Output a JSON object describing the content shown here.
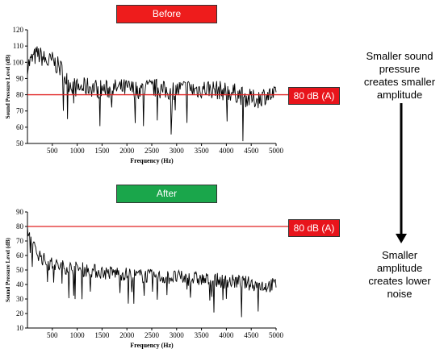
{
  "labels": {
    "before": "Before",
    "after": "After",
    "threshold": "80 dB (A)",
    "ylabel": "Sound Pressure Level (dB)",
    "xlabel": "Frequency (Hz)",
    "note_top_1": "Smaller sound",
    "note_top_2": "pressure",
    "note_top_3": "creates smaller",
    "note_top_4": "amplitude",
    "note_bottom_1": "Smaller",
    "note_bottom_2": "amplitude",
    "note_bottom_3": "creates lower",
    "note_bottom_4": "noise"
  },
  "colors": {
    "before_badge": "#ee1c1c",
    "after_badge": "#1aa64b",
    "threshold_line": "#e02020",
    "threshold_badge": "#e8141b",
    "series": "#000000"
  },
  "chart_data": [
    {
      "type": "line",
      "title": "Before",
      "xlabel": "Frequency (Hz)",
      "ylabel": "Sound Pressure Level (dB)",
      "xlim": [
        0,
        5000
      ],
      "ylim": [
        50,
        120
      ],
      "xticks": [
        500,
        1000,
        1500,
        2000,
        2500,
        3000,
        3500,
        4000,
        4500,
        5000
      ],
      "yticks": [
        50,
        60,
        70,
        80,
        90,
        100,
        110,
        120
      ],
      "threshold": 80,
      "threshold_label": "80 dB (A)",
      "series": [
        {
          "x": [
            0,
            100,
            200,
            300,
            400,
            500,
            600,
            700,
            800,
            900,
            1000,
            1200,
            1400,
            1600,
            1800,
            2000,
            2200,
            2400,
            2600,
            2800,
            3000,
            3200,
            3400,
            3600,
            3800,
            4000,
            4200,
            4400,
            4600,
            4800,
            5000
          ],
          "values": [
            98,
            102,
            105,
            103,
            100,
            101,
            98,
            95,
            88,
            86,
            84,
            85,
            84,
            83,
            84,
            84,
            83,
            84,
            84,
            82,
            83,
            84,
            83,
            84,
            83,
            82,
            81,
            78,
            77,
            80,
            79
          ]
        }
      ]
    },
    {
      "type": "line",
      "title": "After",
      "xlabel": "Frequency (Hz)",
      "ylabel": "Sound Pressure Level (dB)",
      "xlim": [
        0,
        5000
      ],
      "ylim": [
        10,
        90
      ],
      "xticks": [
        500,
        1000,
        1500,
        2000,
        2500,
        3000,
        3500,
        4000,
        4500,
        5000
      ],
      "yticks": [
        10,
        20,
        30,
        40,
        50,
        60,
        70,
        80,
        90
      ],
      "threshold": 80,
      "threshold_label": "80 dB (A)",
      "series": [
        {
          "x": [
            0,
            100,
            200,
            300,
            400,
            500,
            600,
            700,
            800,
            900,
            1000,
            1200,
            1400,
            1600,
            1800,
            2000,
            2200,
            2400,
            2600,
            2800,
            3000,
            3200,
            3400,
            3600,
            3800,
            4000,
            4200,
            4400,
            4600,
            4800,
            5000
          ],
          "values": [
            78,
            67,
            62,
            58,
            55,
            54,
            53,
            52,
            52,
            51,
            51,
            50,
            49,
            48,
            48,
            47,
            46,
            46,
            45,
            45,
            45,
            44,
            44,
            43,
            43,
            42,
            42,
            41,
            40,
            39,
            40
          ]
        }
      ]
    }
  ]
}
